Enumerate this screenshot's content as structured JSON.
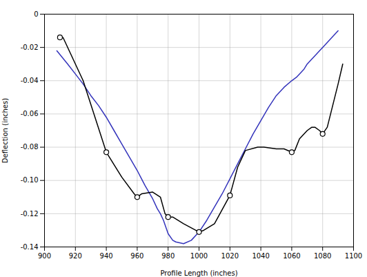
{
  "chart_data": {
    "type": "line",
    "xlabel": "Profile Length (inches)",
    "ylabel": "Deflection (inches)",
    "xlim": [
      900,
      1100
    ],
    "ylim": [
      -0.14,
      0.0
    ],
    "xticks": [
      900,
      920,
      940,
      960,
      980,
      1000,
      1020,
      1040,
      1060,
      1080,
      1100
    ],
    "yticks": [
      0,
      -0.02,
      -0.04,
      -0.06,
      -0.08,
      {
        "value": -0.1,
        "label": "-0.10"
      },
      -0.12,
      -0.14
    ],
    "grid": true,
    "series": [
      {
        "type": "line",
        "color": "#3333bb",
        "x": [
          908,
          915,
          920,
          925,
          930,
          935,
          940,
          945,
          950,
          955,
          960,
          965,
          970,
          973,
          975,
          977,
          980,
          983,
          985,
          990,
          995,
          1000,
          1005,
          1010,
          1015,
          1020,
          1025,
          1030,
          1035,
          1040,
          1045,
          1050,
          1055,
          1060,
          1063,
          1065,
          1068,
          1070,
          1073,
          1075,
          1078,
          1080,
          1083,
          1087,
          1090
        ],
        "values": [
          -0.022,
          -0.03,
          -0.036,
          -0.042,
          -0.049,
          -0.055,
          -0.062,
          -0.07,
          -0.078,
          -0.086,
          -0.094,
          -0.103,
          -0.111,
          -0.117,
          -0.12,
          -0.124,
          -0.132,
          -0.136,
          -0.137,
          -0.138,
          -0.136,
          -0.131,
          -0.124,
          -0.116,
          -0.108,
          -0.099,
          -0.09,
          -0.081,
          -0.072,
          -0.064,
          -0.056,
          -0.049,
          -0.044,
          -0.04,
          -0.038,
          -0.036,
          -0.033,
          -0.03,
          -0.027,
          -0.025,
          -0.022,
          -0.02,
          -0.017,
          -0.013,
          -0.01
        ]
      },
      {
        "type": "line",
        "color": "#000000",
        "x": [
          910,
          912,
          925,
          940,
          950,
          958,
          960,
          963,
          970,
          975,
          978,
          980,
          983,
          990,
          1000,
          1003,
          1010,
          1020,
          1025,
          1030,
          1038,
          1040,
          1042,
          1050,
          1055,
          1060,
          1062,
          1065,
          1070,
          1073,
          1075,
          1078,
          1080,
          1083,
          1090,
          1093
        ],
        "values": [
          -0.014,
          -0.014,
          -0.04,
          -0.083,
          -0.098,
          -0.108,
          -0.11,
          -0.108,
          -0.107,
          -0.11,
          -0.12,
          -0.122,
          -0.122,
          -0.126,
          -0.131,
          -0.13,
          -0.126,
          -0.109,
          -0.092,
          -0.082,
          -0.08,
          -0.08,
          -0.08,
          -0.081,
          -0.081,
          -0.083,
          -0.082,
          -0.075,
          -0.07,
          -0.068,
          -0.068,
          -0.07,
          -0.072,
          -0.068,
          -0.042,
          -0.03
        ]
      },
      {
        "type": "scatter",
        "marker": "circle",
        "color": "#000000",
        "x": [
          910,
          940,
          960,
          980,
          1000,
          1020,
          1060,
          1080
        ],
        "values": [
          -0.014,
          -0.083,
          -0.11,
          -0.122,
          -0.131,
          -0.109,
          -0.083,
          -0.072
        ]
      }
    ]
  }
}
